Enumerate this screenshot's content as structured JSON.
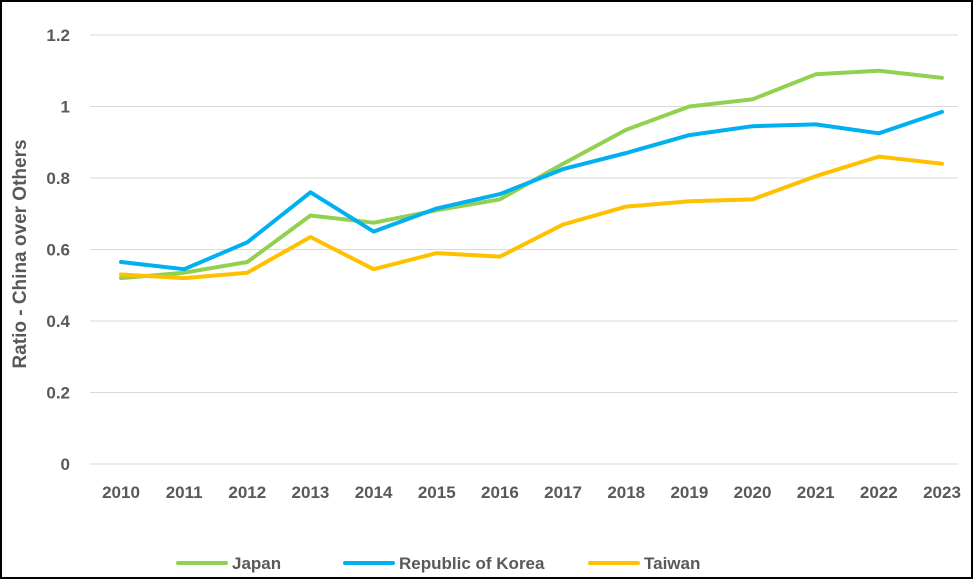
{
  "chart_data": {
    "type": "line",
    "title": "",
    "xlabel": "",
    "ylabel": "Ratio - China over Others",
    "ylim": [
      0,
      1.2
    ],
    "yticks": [
      "0",
      "0.2",
      "0.4",
      "0.6",
      "0.8",
      "1",
      "1.2"
    ],
    "grid": true,
    "legend_position": "bottom",
    "categories": [
      "2010",
      "2011",
      "2012",
      "2013",
      "2014",
      "2015",
      "2016",
      "2017",
      "2018",
      "2019",
      "2020",
      "2021",
      "2022",
      "2023"
    ],
    "series": [
      {
        "name": "Japan",
        "color": "#92d050",
        "values": [
          0.52,
          0.535,
          0.565,
          0.695,
          0.675,
          0.71,
          0.74,
          0.84,
          0.935,
          1.0,
          1.02,
          1.09,
          1.1,
          1.08
        ]
      },
      {
        "name": "Republic of Korea",
        "color": "#00b0f0",
        "values": [
          0.565,
          0.545,
          0.62,
          0.76,
          0.65,
          0.715,
          0.755,
          0.825,
          0.87,
          0.92,
          0.945,
          0.95,
          0.925,
          0.985
        ]
      },
      {
        "name": "Taiwan",
        "color": "#ffc000",
        "values": [
          0.53,
          0.52,
          0.535,
          0.635,
          0.545,
          0.59,
          0.58,
          0.67,
          0.72,
          0.735,
          0.74,
          0.805,
          0.86,
          0.84
        ]
      }
    ]
  }
}
